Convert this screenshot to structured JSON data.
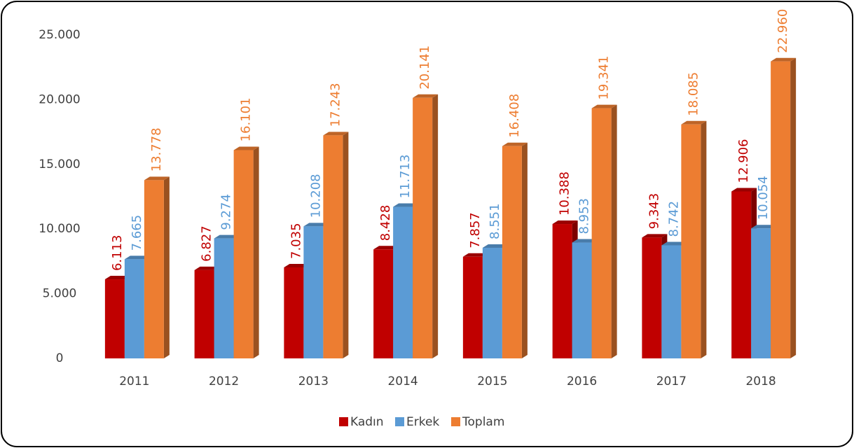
{
  "chart_data": {
    "type": "bar3d",
    "categories": [
      "2011",
      "2012",
      "2013",
      "2014",
      "2015",
      "2016",
      "2017",
      "2018"
    ],
    "series": [
      {
        "name": "Kadın",
        "color": "#c00000",
        "label_color": "#c00000",
        "values": [
          6113,
          6827,
          7035,
          8428,
          7857,
          10388,
          9343,
          12906
        ],
        "value_labels": [
          "6.113",
          "6.827",
          "7.035",
          "8.428",
          "7.857",
          "10.388",
          "9.343",
          "12.906"
        ]
      },
      {
        "name": "Erkek",
        "color": "#5b9bd5",
        "label_color": "#5b9bd5",
        "values": [
          7665,
          9274,
          10208,
          11713,
          8551,
          8953,
          8742,
          10054
        ],
        "value_labels": [
          "7.665",
          "9.274",
          "10.208",
          "11.713",
          "8.551",
          "8.953",
          "8.742",
          "10.054"
        ]
      },
      {
        "name": "Toplam",
        "color": "#ed7d31",
        "label_color": "#ed7d31",
        "values": [
          13778,
          16101,
          17243,
          20141,
          16408,
          19341,
          18085,
          22960
        ],
        "value_labels": [
          "13.778",
          "16.101",
          "17.243",
          "20.141",
          "16.408",
          "19.341",
          "18.085",
          "22.960"
        ]
      }
    ],
    "ylim": [
      0,
      25000
    ],
    "yticks": [
      0,
      {
        "value": 5000,
        "label": "5.000"
      },
      {
        "value": 10000,
        "label": "10.000"
      },
      {
        "value": 15000,
        "label": "15.000"
      },
      {
        "value": 20000,
        "label": "20.000"
      },
      {
        "value": 25000,
        "label": "25.000"
      }
    ],
    "grid": false,
    "legend": "bottom"
  }
}
